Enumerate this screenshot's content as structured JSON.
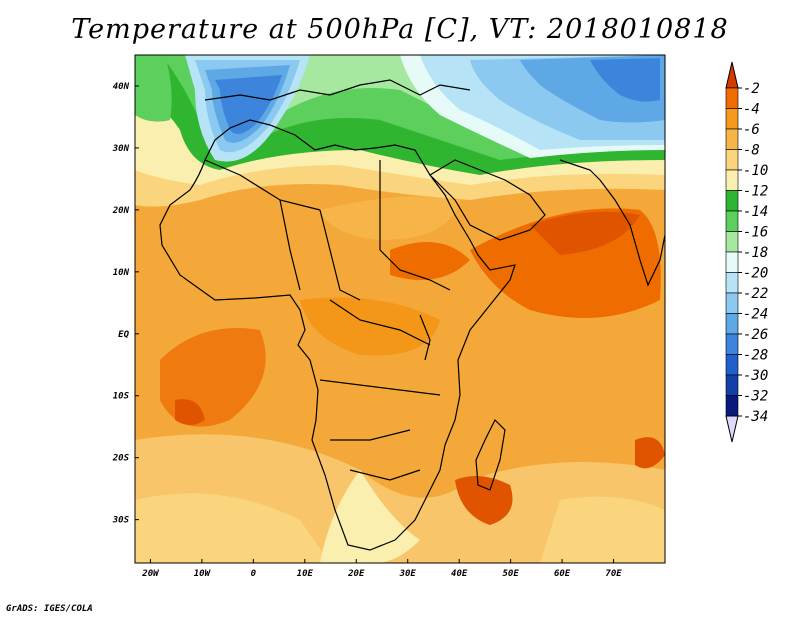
{
  "title": "Temperature at 500hPa [C], VT: 2018010818",
  "footer": "GrADS: IGES/COLA",
  "map": {
    "region": "Africa",
    "variable": "Temperature at 500hPa",
    "units": "C",
    "lon_range": [
      -23,
      80
    ],
    "lat_range": [
      -37,
      45
    ],
    "projection": "latlon"
  },
  "axes": {
    "x_ticks": [
      "20W",
      "10W",
      "0",
      "10E",
      "20E",
      "30E",
      "40E",
      "50E",
      "60E",
      "70E"
    ],
    "x_tick_lons": [
      -20,
      -10,
      0,
      10,
      20,
      30,
      40,
      50,
      60,
      70
    ],
    "y_ticks": [
      "40N",
      "30N",
      "20N",
      "10N",
      "EQ",
      "10S",
      "20S",
      "30S"
    ],
    "y_tick_lats": [
      40,
      30,
      20,
      10,
      0,
      -10,
      -20,
      -30
    ]
  },
  "colorbar": {
    "labels": [
      "-2",
      "-4",
      "-6",
      "-8",
      "-10",
      "-12",
      "-14",
      "-16",
      "-18",
      "-20",
      "-22",
      "-24",
      "-26",
      "-28",
      "-30",
      "-32",
      "-34"
    ],
    "colors": [
      "#d73a00",
      "#ef6c00",
      "#f59a1c",
      "#f7b549",
      "#fad57e",
      "#faefae",
      "#2fb52f",
      "#5ccf5c",
      "#a6e8a0",
      "#e6fbf8",
      "#b6e4f6",
      "#8cc9f0",
      "#5fa8e6",
      "#3d84dc",
      "#2060cc",
      "#123fa8",
      "#0a1a7a",
      "#e0d8ff"
    ],
    "top_color": "#d73a00",
    "bottom_color": "#e0d8ff"
  }
}
